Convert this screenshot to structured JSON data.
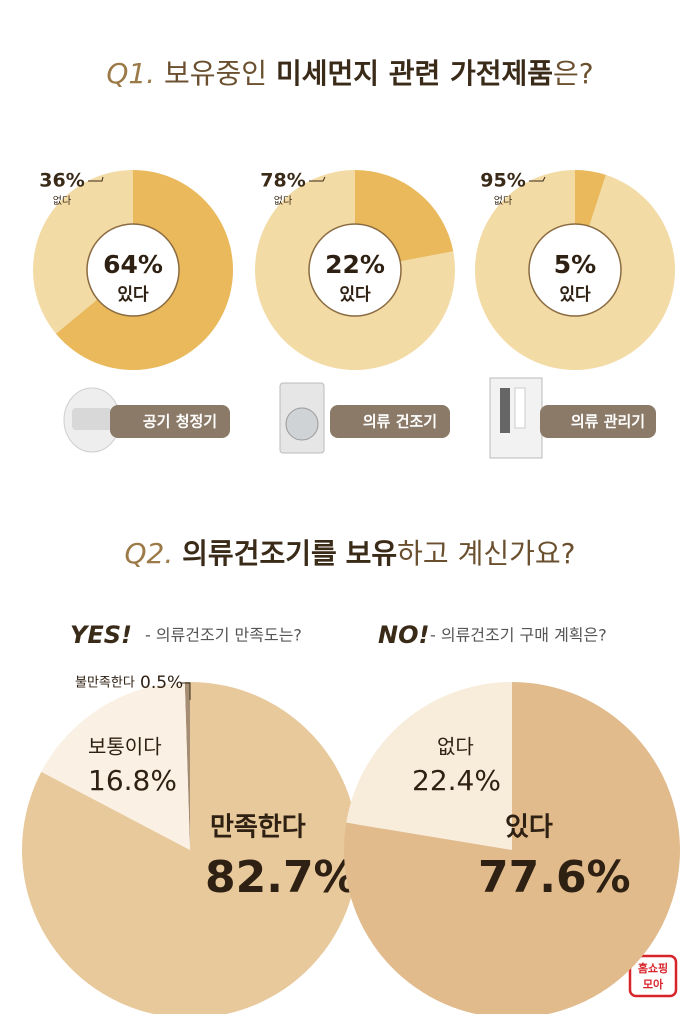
{
  "q1": {
    "label": "Q1.",
    "parts": [
      "보유중인",
      "미세먼지 관련 가전제품",
      "은?"
    ]
  },
  "q2": {
    "label": "Q2.",
    "parts": [
      "의류건조기를",
      "보유",
      "하고 계신가요?"
    ]
  },
  "logo": [
    "홈쇼핑",
    "모아"
  ],
  "chart_data": [
    {
      "type": "donut",
      "caption": "공기 청정기",
      "categories": [
        "없다",
        "있다"
      ],
      "values": [
        36,
        64
      ],
      "value_labels": [
        "36%",
        "64%"
      ],
      "colors": [
        "#f3dba6",
        "#e9b95c"
      ]
    },
    {
      "type": "donut",
      "caption": "의류 건조기",
      "categories": [
        "없다",
        "있다"
      ],
      "values": [
        78,
        22
      ],
      "value_labels": [
        "78%",
        "22%"
      ],
      "colors": [
        "#f3dba6",
        "#e9b95c"
      ]
    },
    {
      "type": "donut",
      "caption": "의류 관리기",
      "categories": [
        "없다",
        "있다"
      ],
      "values": [
        95,
        5
      ],
      "value_labels": [
        "95%",
        "5%"
      ],
      "colors": [
        "#f3dba6",
        "#e9b95c"
      ]
    },
    {
      "type": "pie",
      "title": "YES!",
      "subtitle": "- 의류건조기 만족도는?",
      "categories": [
        "불만족한다",
        "보통이다",
        "만족한다"
      ],
      "values": [
        0.5,
        16.8,
        82.7
      ],
      "value_labels": [
        "0.5%",
        "16.8%",
        "82.7%"
      ],
      "colors": [
        "#a48d72",
        "#faf1e4",
        "#e8c99c"
      ]
    },
    {
      "type": "pie",
      "title": "NO!",
      "subtitle": "- 의류건조기 구매 계획은?",
      "categories": [
        "없다",
        "있다"
      ],
      "values": [
        22.4,
        77.6
      ],
      "value_labels": [
        "22.4%",
        "77.6%"
      ],
      "colors": [
        "#f8ecdb",
        "#e1bb8c"
      ]
    }
  ]
}
